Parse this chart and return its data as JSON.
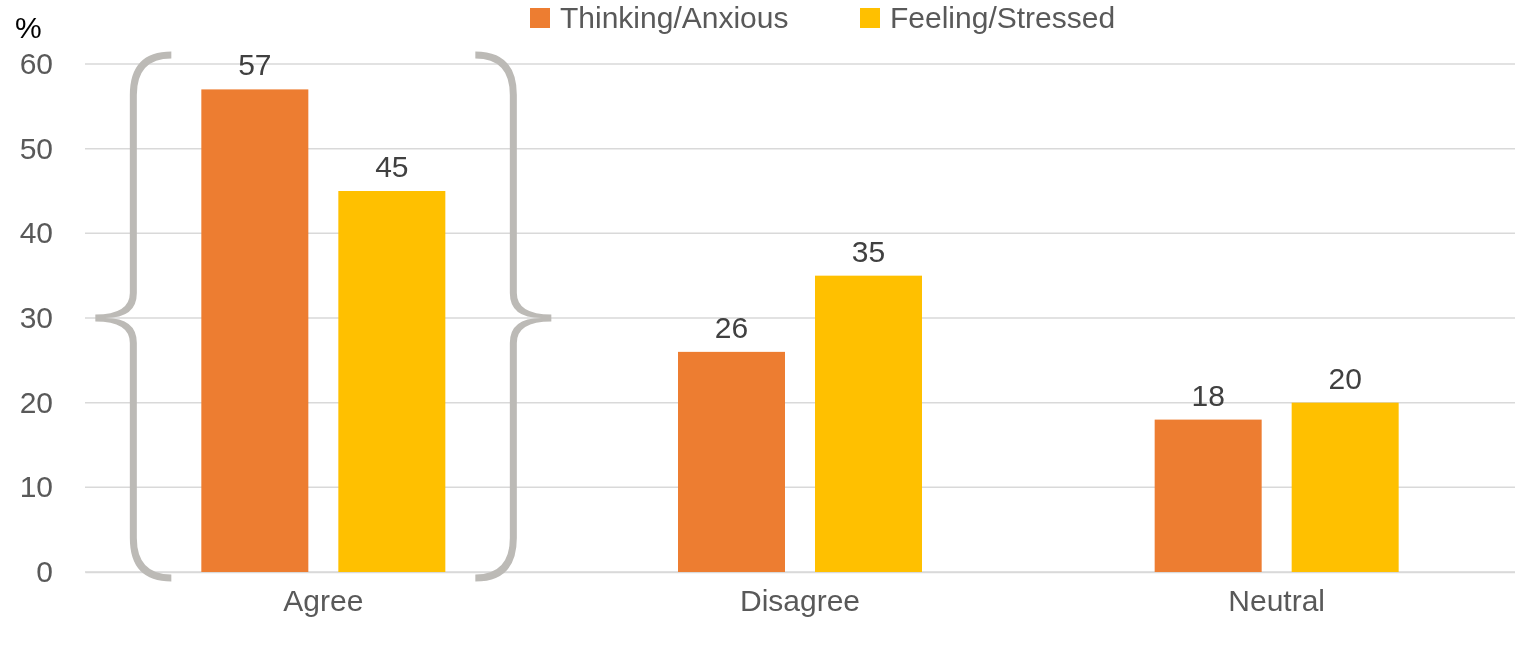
{
  "chart_data": {
    "type": "bar",
    "ylabel": "%",
    "categories": [
      "Agree",
      "Disagree",
      "Neutral"
    ],
    "series": [
      {
        "name": "Thinking/Anxious",
        "color": "#ed7d31",
        "values": [
          57,
          26,
          18
        ]
      },
      {
        "name": "Feeling/Stressed",
        "color": "#ffc000",
        "values": [
          45,
          35,
          20
        ]
      }
    ],
    "ylim": [
      0,
      60
    ],
    "yticks": [
      0,
      10,
      20,
      30,
      40,
      50,
      60
    ],
    "grid": "y",
    "legend": "top",
    "data_labels": true
  }
}
